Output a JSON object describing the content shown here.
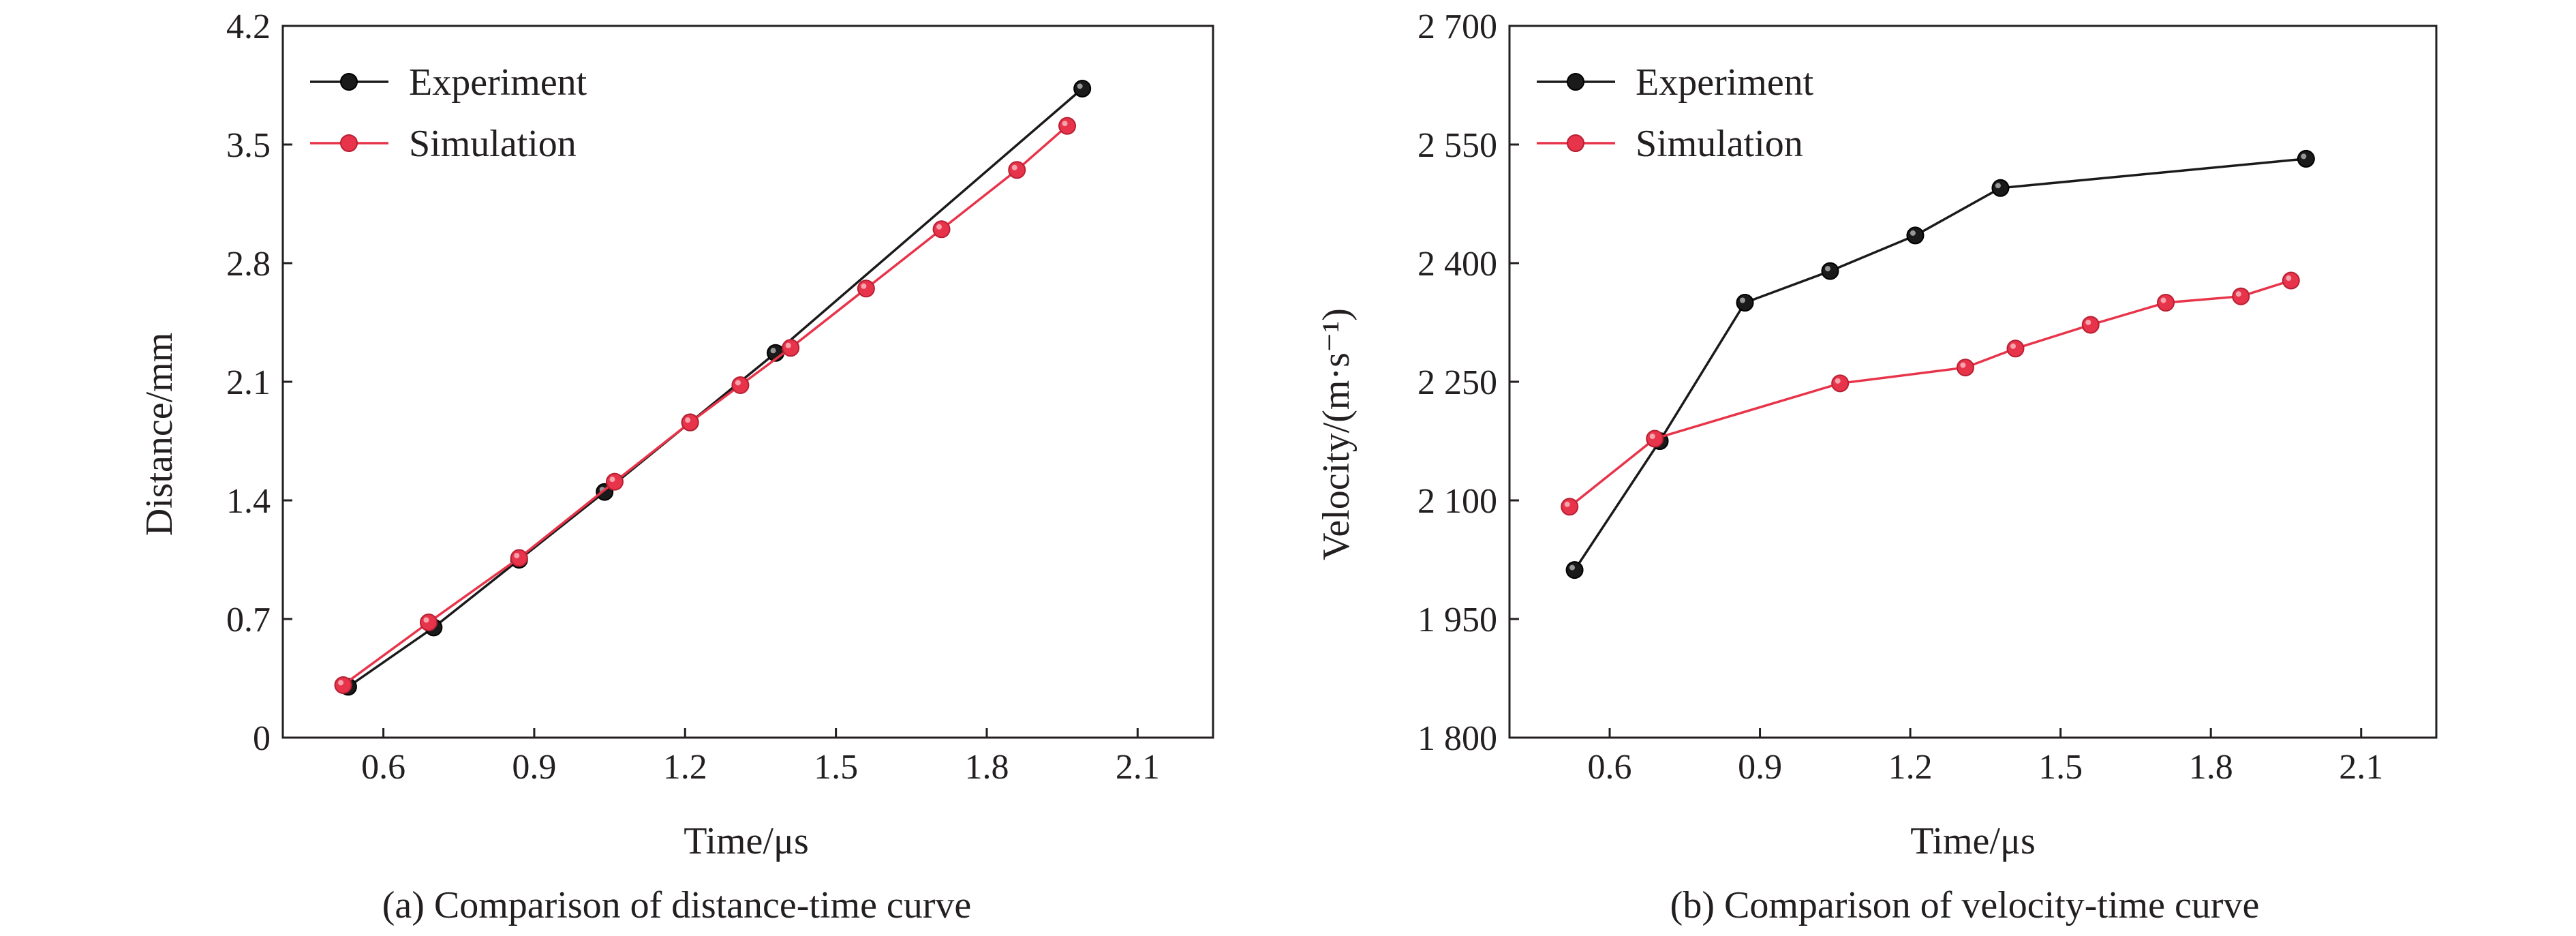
{
  "chart_data": [
    {
      "type": "line",
      "caption": "(a) Comparison of distance-time curve",
      "xlabel": "Time/μs",
      "ylabel": "Distance/mm",
      "xlim": [
        0.4,
        2.25
      ],
      "ylim": [
        0,
        4.2
      ],
      "x_ticks": [
        0.6,
        0.9,
        1.2,
        1.5,
        1.8,
        2.1
      ],
      "x_tick_labels": [
        "0.6",
        "0.9",
        "1.2",
        "1.5",
        "1.8",
        "2.1"
      ],
      "y_ticks": [
        0,
        0.7,
        1.4,
        2.1,
        2.8,
        3.5,
        4.2
      ],
      "y_tick_labels": [
        "0",
        "0.7",
        "1.4",
        "2.1",
        "2.8",
        "3.5",
        "4.2"
      ],
      "legend_position": "top-left",
      "grid": false,
      "series": [
        {
          "name": "Experiment",
          "color": "#1a1a1a",
          "x": [
            0.53,
            0.7,
            0.87,
            1.04,
            1.21,
            1.38,
            1.99
          ],
          "y": [
            0.3,
            0.65,
            1.05,
            1.45,
            1.86,
            2.27,
            3.83
          ]
        },
        {
          "name": "Simulation",
          "color": "#e8344a",
          "x": [
            0.52,
            0.69,
            0.87,
            1.06,
            1.21,
            1.31,
            1.41,
            1.56,
            1.71,
            1.86,
            1.96
          ],
          "y": [
            0.31,
            0.68,
            1.06,
            1.51,
            1.86,
            2.08,
            2.3,
            2.65,
            3.0,
            3.35,
            3.61
          ]
        }
      ]
    },
    {
      "type": "line",
      "caption": "(b) Comparison of velocity-time curve",
      "xlabel": "Time/μs",
      "ylabel": "Velocity/(m·s⁻¹)",
      "xlim": [
        0.4,
        2.25
      ],
      "ylim": [
        1800,
        2700
      ],
      "x_ticks": [
        0.6,
        0.9,
        1.2,
        1.5,
        1.8,
        2.1
      ],
      "x_tick_labels": [
        "0.6",
        "0.9",
        "1.2",
        "1.5",
        "1.8",
        "2.1"
      ],
      "y_ticks": [
        1800,
        1950,
        2100,
        2250,
        2400,
        2550,
        2700
      ],
      "y_tick_labels": [
        "1 800",
        "1 950",
        "2 100",
        "2 250",
        "2 400",
        "2 550",
        "2 700"
      ],
      "legend_position": "top-left",
      "grid": false,
      "series": [
        {
          "name": "Experiment",
          "color": "#1a1a1a",
          "x": [
            0.53,
            0.7,
            0.87,
            1.04,
            1.21,
            1.38,
            1.99
          ],
          "y": [
            2012,
            2175,
            2350,
            2390,
            2435,
            2495,
            2532
          ]
        },
        {
          "name": "Simulation",
          "color": "#e8344a",
          "x": [
            0.52,
            0.69,
            1.06,
            1.31,
            1.41,
            1.56,
            1.71,
            1.86,
            1.96
          ],
          "y": [
            2092,
            2178,
            2248,
            2268,
            2292,
            2322,
            2350,
            2358,
            2378
          ]
        }
      ]
    }
  ]
}
